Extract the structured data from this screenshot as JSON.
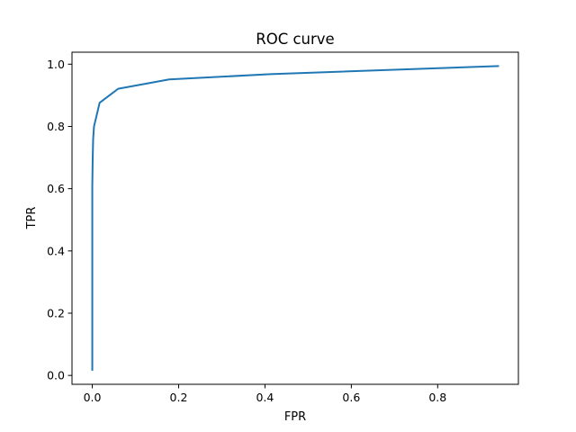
{
  "chart_data": {
    "type": "line",
    "title": "ROC curve",
    "xlabel": "FPR",
    "ylabel": "TPR",
    "xlim": [
      -0.047,
      0.987
    ],
    "ylim": [
      -0.0285,
      1.0385
    ],
    "grid": false,
    "legend": "none",
    "xticks": [
      0.0,
      0.2,
      0.4,
      0.6,
      0.8
    ],
    "xtick_labels": [
      "0.0",
      "0.2",
      "0.4",
      "0.6",
      "0.8"
    ],
    "yticks": [
      0.0,
      0.2,
      0.4,
      0.6,
      0.8,
      1.0
    ],
    "ytick_labels": [
      "0.0",
      "0.2",
      "0.4",
      "0.6",
      "0.8",
      "1.0"
    ],
    "line_color": "#1f77b4",
    "series": [
      {
        "x": [
          0.0,
          0.0,
          0.001,
          0.002,
          0.004,
          0.017,
          0.06,
          0.178,
          0.413,
          0.94
        ],
        "y": [
          0.018,
          0.61,
          0.7,
          0.76,
          0.8,
          0.876,
          0.921,
          0.951,
          0.968,
          0.994
        ]
      }
    ]
  }
}
